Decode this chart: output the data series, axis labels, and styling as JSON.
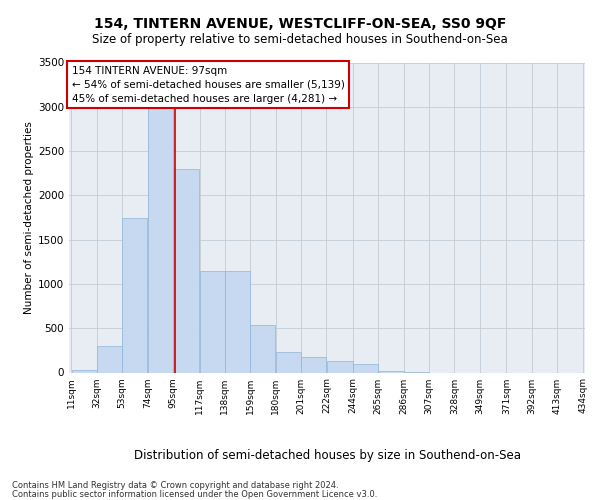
{
  "title": "154, TINTERN AVENUE, WESTCLIFF-ON-SEA, SS0 9QF",
  "subtitle": "Size of property relative to semi-detached houses in Southend-on-Sea",
  "xlabel": "Distribution of semi-detached houses by size in Southend-on-Sea",
  "ylabel": "Number of semi-detached properties",
  "footer1": "Contains HM Land Registry data © Crown copyright and database right 2024.",
  "footer2": "Contains public sector information licensed under the Open Government Licence v3.0.",
  "annotation_title": "154 TINTERN AVENUE: 97sqm",
  "annotation_line2": "← 54% of semi-detached houses are smaller (5,139)",
  "annotation_line3": "45% of semi-detached houses are larger (4,281) →",
  "bar_edges": [
    11,
    32,
    53,
    74,
    95,
    117,
    138,
    159,
    180,
    201,
    222,
    244,
    265,
    286,
    307,
    328,
    349,
    371,
    392,
    413,
    434
  ],
  "bar_heights": [
    25,
    300,
    1750,
    3050,
    2300,
    1150,
    1150,
    540,
    230,
    175,
    130,
    100,
    20,
    5,
    0,
    0,
    0,
    0,
    0,
    0
  ],
  "tick_labels": [
    "11sqm",
    "32sqm",
    "53sqm",
    "74sqm",
    "95sqm",
    "117sqm",
    "138sqm",
    "159sqm",
    "180sqm",
    "201sqm",
    "222sqm",
    "244sqm",
    "265sqm",
    "286sqm",
    "307sqm",
    "328sqm",
    "349sqm",
    "371sqm",
    "392sqm",
    "413sqm",
    "434sqm"
  ],
  "ylim": [
    0,
    3500
  ],
  "yticks": [
    0,
    500,
    1000,
    1500,
    2000,
    2500,
    3000,
    3500
  ],
  "bar_color": "#c6d9f0",
  "bar_edge_color": "#8fb4d9",
  "vline_color": "#cc0000",
  "vline_x": 97,
  "annotation_box_color": "#cc0000",
  "grid_color": "#c0ccd8",
  "bg_color": "#e8edf4",
  "title_fontsize": 10,
  "subtitle_fontsize": 8.5,
  "annotation_fontsize": 7.5,
  "ylabel_fontsize": 7.5,
  "xlabel_fontsize": 8.5,
  "tick_fontsize": 6.5,
  "ytick_fontsize": 7.5,
  "footer_fontsize": 6.0
}
